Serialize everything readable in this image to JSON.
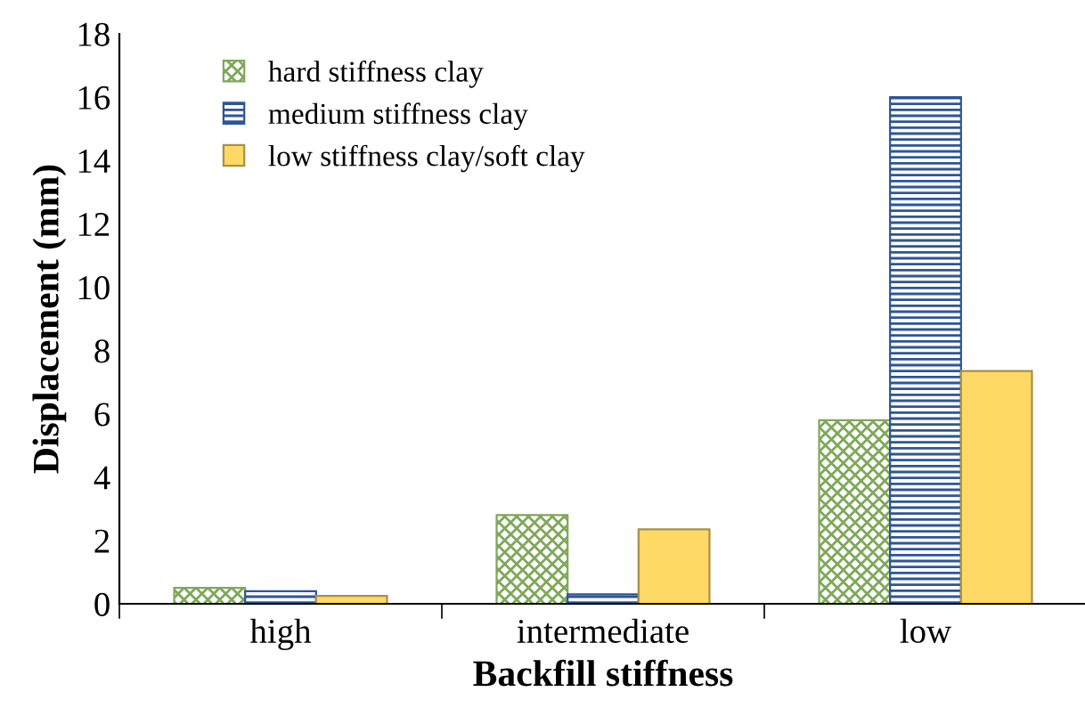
{
  "chart_data": {
    "type": "bar",
    "xlabel": "Backfill stiffness",
    "ylabel": "Displacement (mm)",
    "categories": [
      "high",
      "intermediate",
      "low"
    ],
    "series": [
      {
        "name": "hard stiffness clay",
        "color": "#7fa85a",
        "values": [
          0.5,
          2.8,
          5.8
        ]
      },
      {
        "name": "medium stiffness clay",
        "color": "#2e5597",
        "values": [
          0.4,
          0.3,
          16.0
        ]
      },
      {
        "name": "low stiffness clay/soft clay",
        "color": "#ffd966",
        "values": [
          0.25,
          2.35,
          7.35
        ]
      }
    ],
    "ylim": [
      0,
      18
    ],
    "yticks": [
      0,
      2,
      4,
      6,
      8,
      10,
      12,
      14,
      16,
      18
    ],
    "grid": false,
    "legend": "top left"
  }
}
